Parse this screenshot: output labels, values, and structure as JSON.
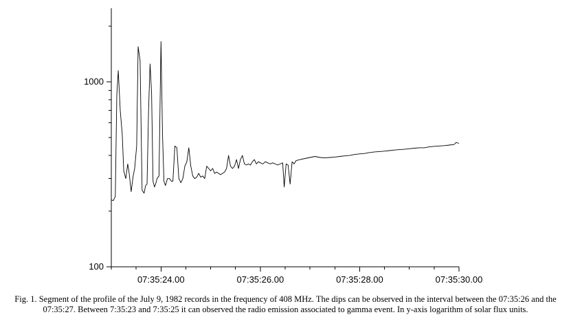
{
  "caption": "Fig. 1. Segment of the profile of the July 9, 1982 records in the frequency of 408 MHz. The dips can be observed in the interval between the 07:35:26 and the 07:35:27. Between 7:35:23 and 7:35:25 it can observed the radio emission associated to gamma event. In y-axis logarithm of solar flux units.",
  "chart_data": {
    "type": "line",
    "title": "",
    "xlabel": "",
    "ylabel": "",
    "y_scale": "log",
    "ylim": [
      100,
      2500
    ],
    "xlim": [
      23.0,
      30.0
    ],
    "x_ticks": [
      {
        "value": 24.0,
        "label": "07:35:24.00"
      },
      {
        "value": 26.0,
        "label": "07:35:26.00"
      },
      {
        "value": 28.0,
        "label": "07:35:28.00"
      },
      {
        "value": 30.0,
        "label": "07:35:30.00"
      }
    ],
    "y_ticks": [
      {
        "value": 100,
        "label": "100"
      },
      {
        "value": 1000,
        "label": "1000"
      }
    ],
    "grid": false,
    "line_color": "#000000",
    "series": [
      {
        "x": [
          23.0,
          23.04,
          23.08,
          23.11,
          23.14,
          23.18,
          23.22,
          23.25,
          23.29,
          23.33,
          23.36,
          23.4,
          23.44,
          23.47,
          23.51,
          23.54,
          23.58,
          23.6,
          23.62,
          23.66,
          23.69,
          23.72,
          23.75,
          23.78,
          23.81,
          23.84,
          23.87,
          23.9,
          23.92,
          23.96,
          24.0,
          24.03,
          24.06,
          24.09,
          24.13,
          24.17,
          24.21,
          24.24,
          24.28,
          24.32,
          24.36,
          24.4,
          24.44,
          24.48,
          24.52,
          24.56,
          24.6,
          24.64,
          24.68,
          24.72,
          24.76,
          24.8,
          24.84,
          24.88,
          24.92,
          24.96,
          25.0,
          25.04,
          25.08,
          25.12,
          25.16,
          25.2,
          25.24,
          25.28,
          25.32,
          25.36,
          25.4,
          25.44,
          25.48,
          25.52,
          25.56,
          25.6,
          25.64,
          25.68,
          25.72,
          25.76,
          25.8,
          25.84,
          25.88,
          25.92,
          25.96,
          26.0,
          26.05,
          26.1,
          26.15,
          26.2,
          26.25,
          26.3,
          26.35,
          26.4,
          26.45,
          26.48,
          26.52,
          26.56,
          26.6,
          26.64,
          26.68,
          26.72,
          26.8,
          26.9,
          27.0,
          27.1,
          27.2,
          27.3,
          27.4,
          27.5,
          27.6,
          27.7,
          27.8,
          27.9,
          28.0,
          28.1,
          28.2,
          28.3,
          28.4,
          28.5,
          28.6,
          28.7,
          28.8,
          28.9,
          29.0,
          29.1,
          29.2,
          29.3,
          29.4,
          29.5,
          29.6,
          29.7,
          29.8,
          29.9,
          29.94,
          30.0
        ],
        "values": [
          230,
          228,
          240,
          850,
          1150,
          700,
          520,
          330,
          300,
          360,
          320,
          255,
          310,
          340,
          450,
          1550,
          1300,
          560,
          260,
          250,
          275,
          280,
          700,
          1250,
          870,
          290,
          270,
          285,
          300,
          310,
          1650,
          520,
          290,
          275,
          300,
          300,
          290,
          290,
          450,
          440,
          300,
          285,
          300,
          350,
          370,
          440,
          350,
          310,
          300,
          305,
          320,
          305,
          310,
          300,
          350,
          340,
          330,
          340,
          320,
          325,
          320,
          315,
          320,
          325,
          340,
          400,
          350,
          340,
          350,
          380,
          340,
          380,
          400,
          360,
          355,
          360,
          355,
          370,
          380,
          360,
          370,
          365,
          360,
          370,
          365,
          360,
          365,
          360,
          355,
          360,
          365,
          270,
          360,
          355,
          280,
          370,
          360,
          375,
          380,
          385,
          390,
          395,
          390,
          388,
          390,
          392,
          395,
          398,
          400,
          405,
          408,
          410,
          415,
          418,
          420,
          422,
          425,
          428,
          430,
          432,
          435,
          438,
          440,
          440,
          445,
          448,
          450,
          452,
          455,
          458,
          470,
          465
        ]
      }
    ]
  }
}
